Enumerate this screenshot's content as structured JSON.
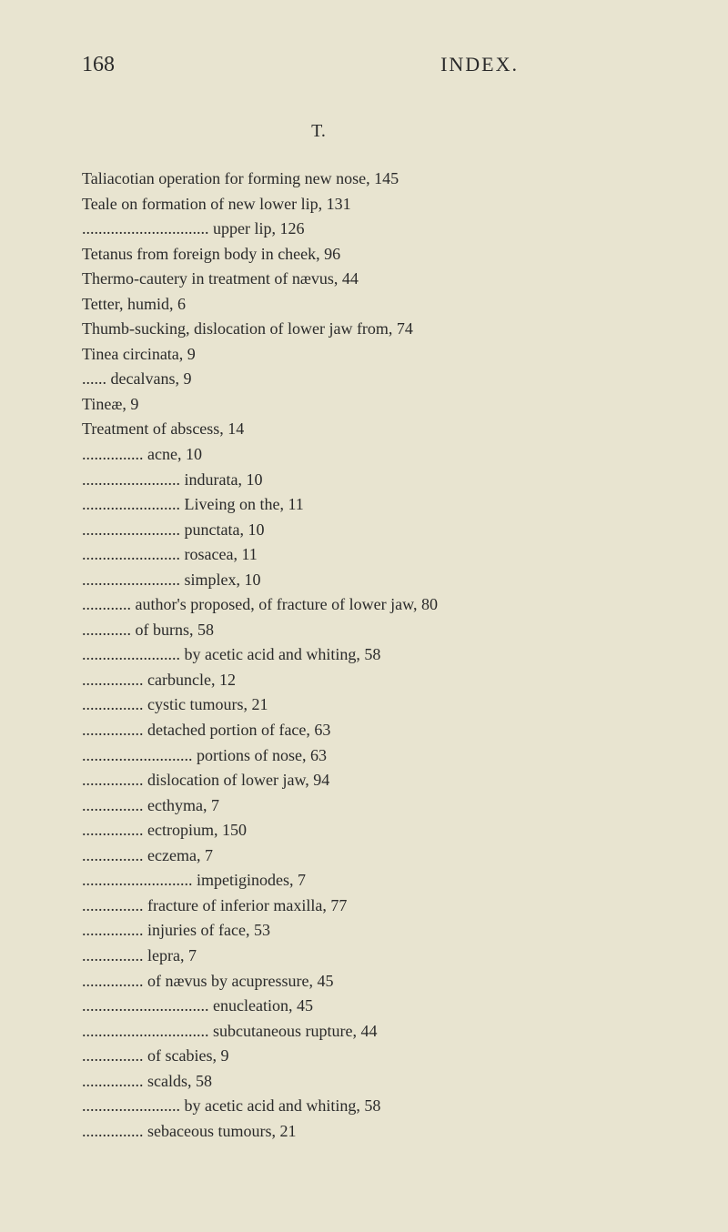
{
  "pageNumber": "168",
  "pageTitle": "INDEX.",
  "sectionLetter": "T.",
  "entries": [
    {
      "text": "Taliacotian operation for forming new nose, 145",
      "indent": 0
    },
    {
      "text": "Teale on formation of new lower lip, 131",
      "indent": 0
    },
    {
      "text": "............................... upper lip, 126",
      "indent": 0
    },
    {
      "text": "Tetanus from foreign body in cheek, 96",
      "indent": 0
    },
    {
      "text": "Thermo-cautery in treatment of nævus, 44",
      "indent": 0
    },
    {
      "text": "Tetter, humid, 6",
      "indent": 0
    },
    {
      "text": "Thumb-sucking, dislocation of lower jaw from, 74",
      "indent": 0
    },
    {
      "text": "Tinea circinata, 9",
      "indent": 0
    },
    {
      "text": "...... decalvans, 9",
      "indent": 0
    },
    {
      "text": "Tineæ, 9",
      "indent": 0
    },
    {
      "text": "Treatment of abscess, 14",
      "indent": 0
    },
    {
      "text": "............... acne, 10",
      "indent": 0
    },
    {
      "text": "........................ indurata, 10",
      "indent": 0
    },
    {
      "text": "........................ Liveing on the, 11",
      "indent": 0
    },
    {
      "text": "........................ punctata, 10",
      "indent": 0
    },
    {
      "text": "........................ rosacea, 11",
      "indent": 0
    },
    {
      "text": "........................ simplex, 10",
      "indent": 0
    },
    {
      "text": "............ author's proposed, of fracture of lower jaw, 80",
      "indent": 0
    },
    {
      "text": "............ of burns, 58",
      "indent": 0
    },
    {
      "text": "........................ by acetic acid and whiting, 58",
      "indent": 0
    },
    {
      "text": "............... carbuncle, 12",
      "indent": 0
    },
    {
      "text": "............... cystic tumours, 21",
      "indent": 0
    },
    {
      "text": "............... detached portion of face, 63",
      "indent": 0
    },
    {
      "text": "........................... portions of nose, 63",
      "indent": 0
    },
    {
      "text": "............... dislocation of lower jaw, 94",
      "indent": 0
    },
    {
      "text": "............... ecthyma, 7",
      "indent": 0
    },
    {
      "text": "............... ectropium, 150",
      "indent": 0
    },
    {
      "text": "............... eczema, 7",
      "indent": 0
    },
    {
      "text": "........................... impetiginodes, 7",
      "indent": 0
    },
    {
      "text": "............... fracture of inferior maxilla, 77",
      "indent": 0
    },
    {
      "text": "............... injuries of face, 53",
      "indent": 0
    },
    {
      "text": "............... lepra, 7",
      "indent": 0
    },
    {
      "text": "............... of nævus by acupressure, 45",
      "indent": 0
    },
    {
      "text": "............................... enucleation, 45",
      "indent": 0
    },
    {
      "text": "............................... subcutaneous rupture, 44",
      "indent": 0
    },
    {
      "text": "............... of scabies, 9",
      "indent": 0
    },
    {
      "text": "............... scalds, 58",
      "indent": 0
    },
    {
      "text": "........................ by acetic acid and whiting, 58",
      "indent": 0
    },
    {
      "text": "............... sebaceous tumours, 21",
      "indent": 0
    }
  ]
}
